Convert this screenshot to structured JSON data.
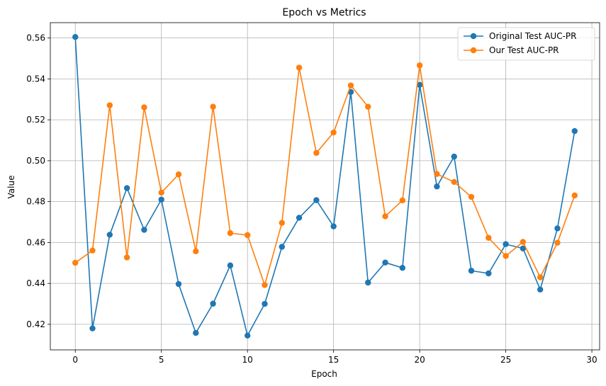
{
  "chart_data": {
    "type": "line",
    "title": "Epoch vs Metrics",
    "xlabel": "Epoch",
    "ylabel": "Value",
    "xlim": [
      -1.45,
      30.45
    ],
    "ylim": [
      0.4075,
      0.5675
    ],
    "x_ticks": [
      0,
      5,
      10,
      15,
      20,
      25,
      30
    ],
    "y_ticks": [
      0.42,
      0.44,
      0.46,
      0.48,
      0.5,
      0.52,
      0.54,
      0.56
    ],
    "x_tick_labels": [
      "0",
      "5",
      "10",
      "15",
      "20",
      "25",
      "30"
    ],
    "y_tick_labels": [
      "0.42",
      "0.44",
      "0.46",
      "0.48",
      "0.50",
      "0.52",
      "0.54",
      "0.56"
    ],
    "grid": true,
    "legend_position": "top-right",
    "x": [
      0,
      1,
      2,
      3,
      4,
      5,
      6,
      7,
      8,
      9,
      10,
      11,
      12,
      13,
      14,
      15,
      16,
      17,
      18,
      19,
      20,
      21,
      22,
      23,
      24,
      25,
      26,
      27,
      28,
      29
    ],
    "series": [
      {
        "name": "Original Test AUC-PR",
        "color": "#1f77b4",
        "values": [
          0.5605,
          0.418,
          0.4638,
          0.4866,
          0.4662,
          0.481,
          0.4397,
          0.4158,
          0.4301,
          0.4488,
          0.4145,
          0.43,
          0.4579,
          0.4721,
          0.4807,
          0.4679,
          0.5336,
          0.4404,
          0.4502,
          0.4476,
          0.5371,
          0.4874,
          0.502,
          0.4462,
          0.4449,
          0.4592,
          0.4571,
          0.437,
          0.4669,
          0.5145
        ]
      },
      {
        "name": "Our Test AUC-PR",
        "color": "#ff7f0e",
        "values": [
          0.4501,
          0.4561,
          0.5271,
          0.4527,
          0.5261,
          0.4844,
          0.4933,
          0.4557,
          0.5264,
          0.4646,
          0.4636,
          0.4392,
          0.4696,
          0.5455,
          0.5038,
          0.5138,
          0.5368,
          0.5264,
          0.4728,
          0.4806,
          0.5466,
          0.4935,
          0.4896,
          0.4823,
          0.4623,
          0.4534,
          0.4603,
          0.443,
          0.4599,
          0.483
        ]
      }
    ]
  }
}
